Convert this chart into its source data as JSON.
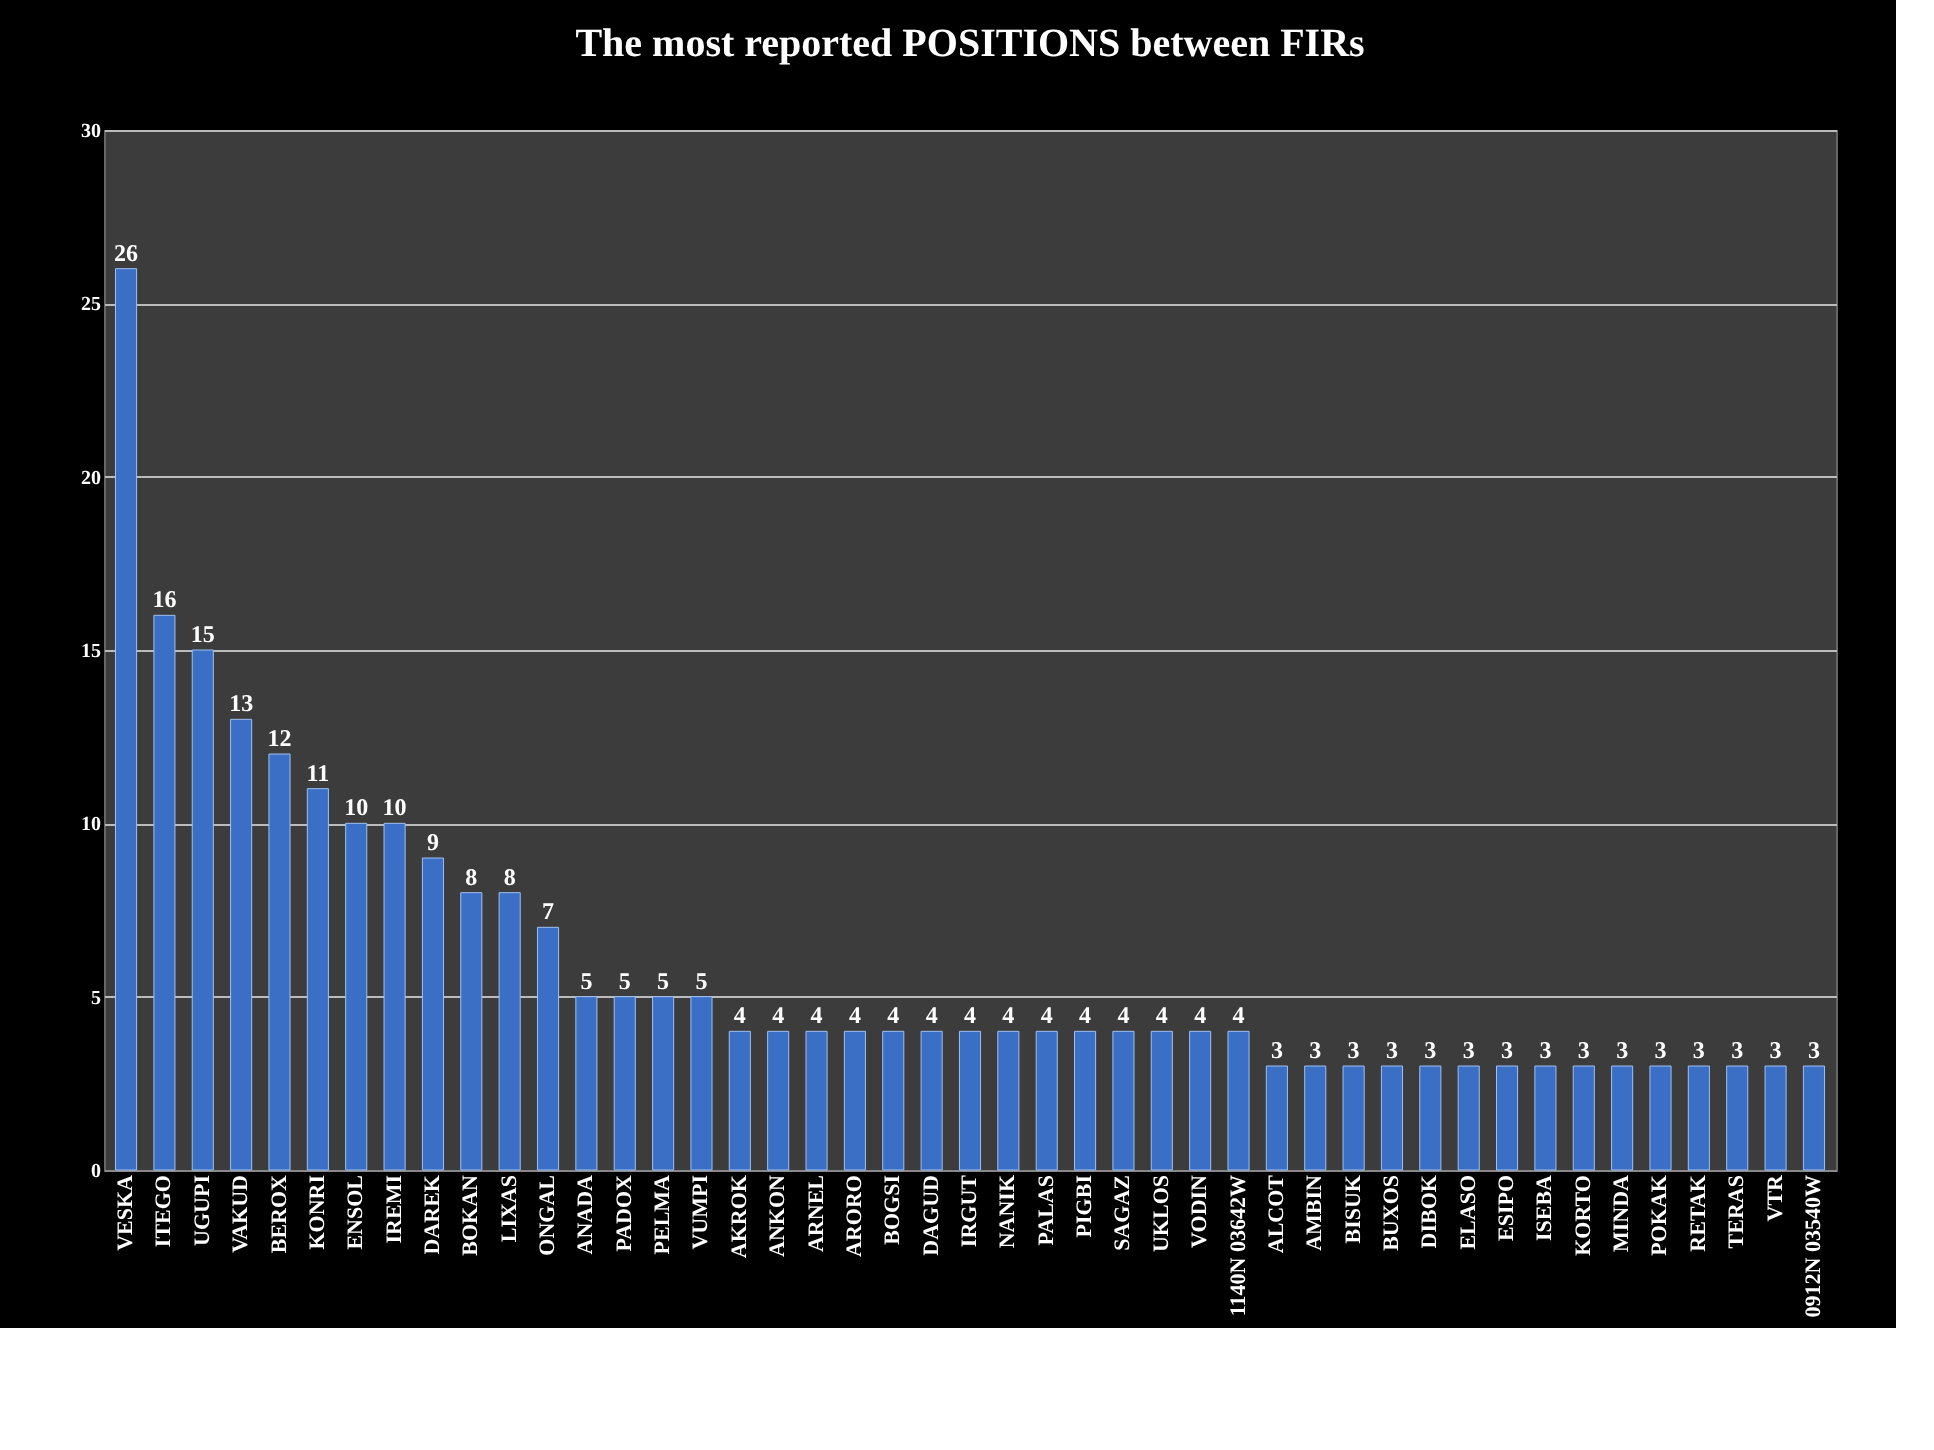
{
  "chart_data": {
    "type": "bar",
    "title": "The most reported POSITIONS between FIRs",
    "categories": [
      "VESKA",
      "ITEGO",
      "UGUPI",
      "VAKUD",
      "BEROX",
      "KONRI",
      "ENSOL",
      "IREMI",
      "DAREK",
      "BOKAN",
      "LIXAS",
      "ONGAL",
      "ANADA",
      "PADOX",
      "PELMA",
      "VUMPI",
      "AKROK",
      "ANKON",
      "ARNEL",
      "ARORO",
      "BOGSI",
      "DAGUD",
      "IRGUT",
      "NANIK",
      "PALAS",
      "PIGBI",
      "SAGAZ",
      "UKLOS",
      "VODIN",
      "1140N 03642W",
      "ALCOT",
      "AMBIN",
      "BISUK",
      "BUXOS",
      "DIBOK",
      "ELASO",
      "ESIPO",
      "ISEBA",
      "KORTO",
      "MINDA",
      "POKAK",
      "RETAK",
      "TERAS",
      "VTR",
      "0912N 03540W"
    ],
    "values": [
      26,
      16,
      15,
      13,
      12,
      11,
      10,
      10,
      9,
      8,
      8,
      7,
      5,
      5,
      5,
      5,
      4,
      4,
      4,
      4,
      4,
      4,
      4,
      4,
      4,
      4,
      4,
      4,
      4,
      4,
      3,
      3,
      3,
      3,
      3,
      3,
      3,
      3,
      3,
      3,
      3,
      3,
      3,
      3,
      3
    ],
    "color": "#3b6fc6",
    "ylim": [
      0,
      30
    ],
    "yticks": [
      0,
      5,
      10,
      15,
      20,
      25,
      30
    ],
    "grid": "y",
    "data_labels": true
  }
}
